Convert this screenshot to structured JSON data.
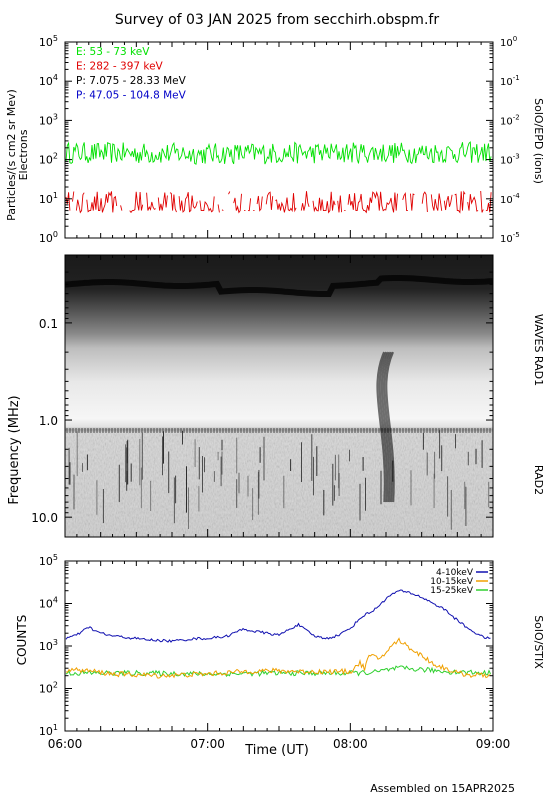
{
  "page": {
    "title": "Survey of 03 JAN 2025 from secchirh.obspm.fr",
    "footer": "Assembled on 15APR2025"
  },
  "colors": {
    "green": "#00e000",
    "red": "#e00000",
    "black": "#000000",
    "blue": "#0000c8",
    "orange": "#f0a000",
    "stix_green": "#30d030",
    "stix_blue": "#1010b0"
  },
  "chart_data": [
    {
      "type": "line",
      "id": "epd",
      "title": "",
      "ylabel": "Particles/(s cm2 sr Mev)",
      "ylabel2": "Electrons",
      "right_label": "SolO/EPD (ions)",
      "ylim": [
        1,
        100000
      ],
      "yscale": "log",
      "y_ticks": [
        "10^0",
        "10^1",
        "10^2",
        "10^3",
        "10^4",
        "10^5"
      ],
      "y2lim": [
        1e-05,
        1
      ],
      "y2_ticks": [
        "10^-5",
        "10^-4",
        "10^-3",
        "10^-2",
        "10^-1",
        "10^0"
      ],
      "xlim": [
        "06:00",
        "09:00"
      ],
      "legend": [
        {
          "name": "E: 53 - 73 keV",
          "color": "green"
        },
        {
          "name": "E: 282 - 397 keV",
          "color": "red"
        },
        {
          "name": "P: 7.075 - 28.33 MeV",
          "color": "black"
        },
        {
          "name": "P: 47.05 - 104.8 MeV",
          "color": "blue"
        }
      ],
      "series": [
        {
          "name": "E: 53 - 73 keV",
          "color": "green",
          "noisy": true,
          "x": [
            "06:00",
            "07:00",
            "08:00",
            "09:00"
          ],
          "values": [
            150,
            140,
            150,
            150
          ]
        },
        {
          "name": "E: 282 - 397 keV",
          "color": "red",
          "noisy": true,
          "intermittent": true,
          "x": [
            "06:00",
            "07:00",
            "08:00",
            "09:00"
          ],
          "values": [
            8,
            8,
            8,
            8
          ]
        }
      ]
    },
    {
      "type": "heatmap",
      "id": "waves",
      "ylabel": "Frequency (MHz)",
      "right_label": "WAVES RAD1",
      "right_label2": "RAD2",
      "ylim": [
        0.02,
        16
      ],
      "yscale": "log",
      "inverted": true,
      "y_ticks": [
        "0.1",
        "1.0",
        "10.0"
      ],
      "xlim": [
        "06:00",
        "09:00"
      ],
      "colormap": "greyscale",
      "features": [
        {
          "kind": "type III burst",
          "start": "08:16",
          "end": "08:26",
          "freq_range_mhz": [
            0.2,
            7
          ]
        }
      ]
    },
    {
      "type": "line",
      "id": "stix",
      "ylabel": "COUNTS",
      "right_label": "SolO/STIX",
      "xlabel": "Time (UT)",
      "ylim": [
        10,
        100000
      ],
      "yscale": "log",
      "y_ticks": [
        "10^1",
        "10^2",
        "10^3",
        "10^4",
        "10^5"
      ],
      "x_ticks": [
        "06:00",
        "07:00",
        "08:00",
        "09:00"
      ],
      "xlim": [
        "06:00",
        "09:00"
      ],
      "series": [
        {
          "name": "4-10keV",
          "color": "stix_blue",
          "x": [
            "06:00",
            "06:05",
            "06:10",
            "06:13",
            "06:18",
            "06:25",
            "06:35",
            "06:45",
            "06:55",
            "07:00",
            "07:08",
            "07:15",
            "07:20",
            "07:25",
            "07:30",
            "07:35",
            "07:38",
            "07:42",
            "07:45",
            "07:50",
            "07:55",
            "08:00",
            "08:05",
            "08:10",
            "08:15",
            "08:20",
            "08:25",
            "08:30",
            "08:35",
            "08:40",
            "08:45",
            "08:50",
            "08:55",
            "09:00"
          ],
          "values": [
            1500,
            1800,
            2800,
            2200,
            1800,
            1600,
            1400,
            1300,
            1500,
            1500,
            1700,
            2500,
            2200,
            2000,
            1800,
            2600,
            3200,
            2200,
            1700,
            1500,
            1800,
            2600,
            5000,
            7000,
            13000,
            20000,
            18000,
            14000,
            10000,
            7000,
            4000,
            2500,
            1700,
            1400
          ]
        },
        {
          "name": "10-15keV",
          "color": "orange",
          "x": [
            "06:00",
            "06:10",
            "06:20",
            "06:30",
            "06:40",
            "06:50",
            "07:00",
            "07:10",
            "07:20",
            "07:30",
            "07:40",
            "07:50",
            "08:00",
            "08:04",
            "08:06",
            "08:08",
            "08:12",
            "08:16",
            "08:20",
            "08:24",
            "08:28",
            "08:32",
            "08:36",
            "08:40",
            "08:45",
            "08:50",
            "09:00"
          ],
          "values": [
            280,
            260,
            220,
            210,
            200,
            210,
            220,
            240,
            260,
            260,
            250,
            250,
            250,
            400,
            300,
            600,
            500,
            800,
            1400,
            1000,
            700,
            500,
            350,
            300,
            230,
            210,
            200
          ]
        },
        {
          "name": "15-25keV",
          "color": "stix_green",
          "x": [
            "06:00",
            "06:30",
            "07:00",
            "07:30",
            "08:00",
            "08:10",
            "08:20",
            "08:30",
            "08:40",
            "09:00"
          ],
          "values": [
            230,
            230,
            220,
            230,
            230,
            240,
            300,
            280,
            250,
            230
          ]
        }
      ]
    }
  ]
}
